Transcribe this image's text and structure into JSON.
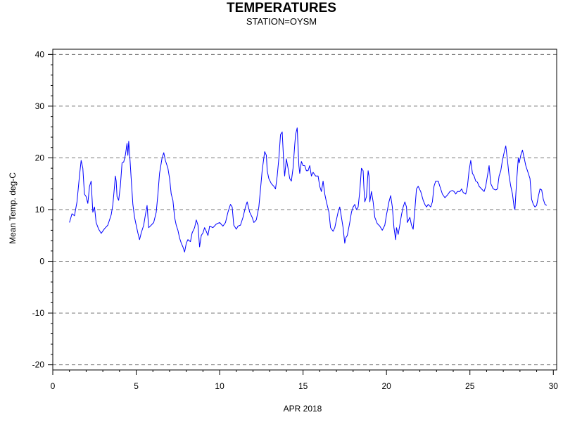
{
  "chart_data": {
    "type": "line",
    "title": "TEMPERATURES",
    "subtitle": "STATION=OYSM",
    "xlabel": "APR 2018",
    "ylabel": "Mean Temp. deg-C",
    "xlim": [
      0,
      30.2
    ],
    "ylim": [
      -21,
      41
    ],
    "x_ticks": [
      0,
      5,
      10,
      15,
      20,
      25,
      30
    ],
    "y_ticks": [
      -20,
      -10,
      0,
      10,
      20,
      30,
      40
    ],
    "grid": "horizontal dashed",
    "series": [
      {
        "color": "#0000ff",
        "points": [
          [
            1.0,
            7.5
          ],
          [
            1.15,
            9.2
          ],
          [
            1.3,
            8.8
          ],
          [
            1.45,
            11.5
          ],
          [
            1.6,
            16.5
          ],
          [
            1.7,
            19.5
          ],
          [
            1.8,
            18.0
          ],
          [
            1.9,
            13.0
          ],
          [
            2.0,
            12.5
          ],
          [
            2.1,
            11.2
          ],
          [
            2.2,
            14.5
          ],
          [
            2.3,
            15.5
          ],
          [
            2.4,
            9.5
          ],
          [
            2.5,
            10.5
          ],
          [
            2.6,
            7.5
          ],
          [
            2.75,
            6.2
          ],
          [
            2.9,
            5.4
          ],
          [
            3.1,
            6.3
          ],
          [
            3.3,
            7.0
          ],
          [
            3.5,
            9.0
          ],
          [
            3.6,
            11.0
          ],
          [
            3.7,
            14.5
          ],
          [
            3.75,
            16.5
          ],
          [
            3.8,
            15.5
          ],
          [
            3.85,
            12.5
          ],
          [
            3.95,
            11.8
          ],
          [
            4.05,
            14.5
          ],
          [
            4.15,
            19.0
          ],
          [
            4.25,
            19.2
          ],
          [
            4.35,
            20.5
          ],
          [
            4.45,
            22.8
          ],
          [
            4.5,
            20.5
          ],
          [
            4.55,
            23.2
          ],
          [
            4.6,
            21.0
          ],
          [
            4.7,
            16.0
          ],
          [
            4.8,
            11.0
          ],
          [
            4.9,
            8.5
          ],
          [
            5.0,
            7.0
          ],
          [
            5.1,
            5.5
          ],
          [
            5.2,
            4.2
          ],
          [
            5.3,
            5.5
          ],
          [
            5.45,
            7.0
          ],
          [
            5.55,
            9.0
          ],
          [
            5.65,
            10.8
          ],
          [
            5.75,
            6.5
          ],
          [
            5.9,
            7.0
          ],
          [
            6.05,
            7.5
          ],
          [
            6.2,
            9.5
          ],
          [
            6.3,
            13.0
          ],
          [
            6.4,
            17.0
          ],
          [
            6.55,
            20.0
          ],
          [
            6.65,
            21.0
          ],
          [
            6.75,
            19.5
          ],
          [
            6.9,
            18.0
          ],
          [
            7.0,
            16.0
          ],
          [
            7.1,
            13.0
          ],
          [
            7.2,
            11.8
          ],
          [
            7.3,
            8.5
          ],
          [
            7.4,
            7.0
          ],
          [
            7.5,
            6.0
          ],
          [
            7.6,
            4.5
          ],
          [
            7.7,
            3.5
          ],
          [
            7.8,
            2.8
          ],
          [
            7.9,
            1.8
          ],
          [
            8.0,
            3.5
          ],
          [
            8.1,
            4.2
          ],
          [
            8.25,
            3.8
          ],
          [
            8.35,
            5.5
          ],
          [
            8.5,
            6.5
          ],
          [
            8.6,
            8.0
          ],
          [
            8.7,
            7.0
          ],
          [
            8.8,
            2.8
          ],
          [
            8.9,
            5.0
          ],
          [
            9.0,
            5.5
          ],
          [
            9.1,
            6.5
          ],
          [
            9.2,
            5.8
          ],
          [
            9.3,
            5.0
          ],
          [
            9.4,
            6.8
          ],
          [
            9.6,
            6.5
          ],
          [
            9.8,
            7.2
          ],
          [
            10.0,
            7.5
          ],
          [
            10.2,
            6.8
          ],
          [
            10.35,
            7.5
          ],
          [
            10.5,
            9.5
          ],
          [
            10.65,
            11.0
          ],
          [
            10.75,
            10.5
          ],
          [
            10.85,
            7.0
          ],
          [
            11.0,
            6.2
          ],
          [
            11.1,
            6.8
          ],
          [
            11.25,
            7.0
          ],
          [
            11.4,
            8.5
          ],
          [
            11.55,
            10.5
          ],
          [
            11.65,
            11.5
          ],
          [
            11.8,
            9.5
          ],
          [
            11.95,
            8.5
          ],
          [
            12.05,
            7.5
          ],
          [
            12.2,
            8.0
          ],
          [
            12.35,
            10.5
          ],
          [
            12.45,
            14.0
          ],
          [
            12.55,
            17.5
          ],
          [
            12.65,
            20.0
          ],
          [
            12.7,
            21.2
          ],
          [
            12.8,
            20.5
          ],
          [
            12.85,
            17.5
          ],
          [
            12.95,
            16.0
          ],
          [
            13.1,
            15.0
          ],
          [
            13.25,
            14.5
          ],
          [
            13.35,
            14.0
          ],
          [
            13.45,
            16.5
          ],
          [
            13.55,
            20.0
          ],
          [
            13.65,
            24.5
          ],
          [
            13.75,
            25.0
          ],
          [
            13.85,
            18.5
          ],
          [
            13.9,
            16.5
          ],
          [
            14.0,
            19.8
          ],
          [
            14.1,
            18.0
          ],
          [
            14.2,
            16.0
          ],
          [
            14.3,
            15.5
          ],
          [
            14.4,
            18.0
          ],
          [
            14.5,
            22.5
          ],
          [
            14.55,
            24.5
          ],
          [
            14.65,
            25.8
          ],
          [
            14.75,
            18.5
          ],
          [
            14.8,
            17.0
          ],
          [
            14.9,
            19.3
          ],
          [
            15.0,
            18.5
          ],
          [
            15.1,
            18.5
          ],
          [
            15.2,
            17.5
          ],
          [
            15.3,
            17.5
          ],
          [
            15.4,
            18.5
          ],
          [
            15.5,
            16.5
          ],
          [
            15.6,
            17.2
          ],
          [
            15.75,
            16.5
          ],
          [
            15.9,
            16.5
          ],
          [
            16.0,
            14.5
          ],
          [
            16.1,
            13.5
          ],
          [
            16.2,
            15.5
          ],
          [
            16.3,
            13.0
          ],
          [
            16.4,
            11.5
          ],
          [
            16.55,
            9.5
          ],
          [
            16.65,
            6.5
          ],
          [
            16.8,
            5.8
          ],
          [
            16.9,
            6.5
          ],
          [
            17.0,
            8.0
          ],
          [
            17.1,
            9.5
          ],
          [
            17.2,
            10.5
          ],
          [
            17.3,
            8.5
          ],
          [
            17.4,
            6.5
          ],
          [
            17.5,
            3.5
          ],
          [
            17.55,
            4.5
          ],
          [
            17.65,
            5.0
          ],
          [
            17.8,
            7.5
          ],
          [
            17.9,
            9.5
          ],
          [
            18.0,
            10.5
          ],
          [
            18.1,
            11.0
          ],
          [
            18.2,
            10.0
          ],
          [
            18.3,
            10.5
          ],
          [
            18.4,
            13.5
          ],
          [
            18.5,
            18.0
          ],
          [
            18.6,
            17.5
          ],
          [
            18.65,
            14.0
          ],
          [
            18.7,
            11.5
          ],
          [
            18.8,
            12.5
          ],
          [
            18.9,
            17.5
          ],
          [
            18.95,
            16.5
          ],
          [
            19.0,
            11.5
          ],
          [
            19.1,
            13.5
          ],
          [
            19.2,
            11.5
          ],
          [
            19.3,
            8.5
          ],
          [
            19.45,
            7.3
          ],
          [
            19.6,
            6.8
          ],
          [
            19.75,
            6.0
          ],
          [
            19.9,
            7.0
          ],
          [
            20.0,
            9.0
          ],
          [
            20.15,
            11.5
          ],
          [
            20.25,
            12.7
          ],
          [
            20.35,
            10.5
          ],
          [
            20.45,
            6.5
          ],
          [
            20.55,
            4.2
          ],
          [
            20.6,
            6.5
          ],
          [
            20.7,
            5.2
          ],
          [
            20.8,
            7.0
          ],
          [
            20.9,
            9.0
          ],
          [
            21.0,
            10.5
          ],
          [
            21.1,
            11.5
          ],
          [
            21.2,
            10.5
          ],
          [
            21.25,
            7.5
          ],
          [
            21.4,
            8.5
          ],
          [
            21.5,
            7.0
          ],
          [
            21.6,
            6.2
          ],
          [
            21.7,
            10.0
          ],
          [
            21.8,
            14.0
          ],
          [
            21.9,
            14.5
          ],
          [
            22.05,
            13.5
          ],
          [
            22.2,
            11.8
          ],
          [
            22.3,
            11.0
          ],
          [
            22.4,
            10.5
          ],
          [
            22.5,
            11.0
          ],
          [
            22.65,
            10.5
          ],
          [
            22.75,
            11.5
          ],
          [
            22.85,
            14.5
          ],
          [
            22.95,
            15.5
          ],
          [
            23.1,
            15.5
          ],
          [
            23.2,
            14.5
          ],
          [
            23.35,
            13.0
          ],
          [
            23.5,
            12.3
          ],
          [
            23.65,
            12.8
          ],
          [
            23.8,
            13.5
          ],
          [
            23.95,
            13.7
          ],
          [
            24.05,
            13.5
          ],
          [
            24.15,
            13.0
          ],
          [
            24.25,
            13.5
          ],
          [
            24.4,
            13.5
          ],
          [
            24.5,
            14.0
          ],
          [
            24.6,
            13.3
          ],
          [
            24.75,
            13.0
          ],
          [
            24.85,
            14.5
          ],
          [
            24.95,
            17.5
          ],
          [
            25.05,
            19.5
          ],
          [
            25.15,
            17.0
          ],
          [
            25.25,
            16.5
          ],
          [
            25.35,
            15.5
          ],
          [
            25.45,
            15.3
          ],
          [
            25.55,
            14.5
          ],
          [
            25.7,
            14.0
          ],
          [
            25.85,
            13.5
          ],
          [
            25.95,
            14.5
          ],
          [
            26.05,
            16.5
          ],
          [
            26.15,
            18.5
          ],
          [
            26.25,
            15.0
          ],
          [
            26.4,
            14.0
          ],
          [
            26.55,
            13.8
          ],
          [
            26.65,
            14.0
          ],
          [
            26.75,
            16.5
          ],
          [
            26.85,
            17.5
          ],
          [
            26.95,
            19.5
          ],
          [
            27.05,
            21.0
          ],
          [
            27.15,
            22.3
          ],
          [
            27.25,
            19.5
          ],
          [
            27.35,
            16.5
          ],
          [
            27.45,
            14.5
          ],
          [
            27.55,
            13.0
          ],
          [
            27.65,
            10.5
          ],
          [
            27.7,
            10.0
          ],
          [
            27.8,
            15.5
          ],
          [
            27.9,
            20.0
          ],
          [
            27.95,
            19.0
          ],
          [
            28.05,
            20.5
          ],
          [
            28.15,
            21.5
          ],
          [
            28.25,
            20.0
          ],
          [
            28.35,
            18.5
          ],
          [
            28.45,
            17.5
          ],
          [
            28.5,
            17.0
          ],
          [
            28.6,
            16.0
          ],
          [
            28.7,
            12.0
          ],
          [
            28.8,
            11.0
          ],
          [
            28.9,
            10.5
          ],
          [
            29.0,
            10.8
          ],
          [
            29.1,
            12.5
          ],
          [
            29.2,
            14.0
          ],
          [
            29.3,
            13.8
          ],
          [
            29.4,
            12.0
          ],
          [
            29.5,
            11.0
          ],
          [
            29.6,
            10.8
          ]
        ]
      }
    ]
  }
}
